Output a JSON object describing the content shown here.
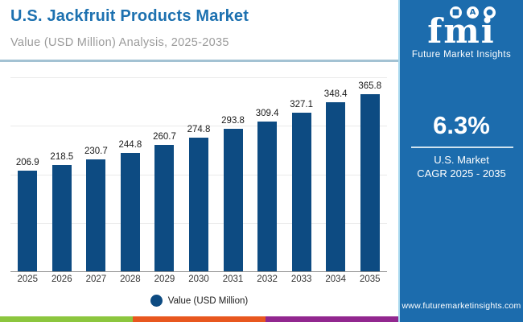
{
  "header": {
    "title": "U.S. Jackfruit Products Market",
    "subtitle": "Value (USD Million) Analysis, 2025-2035"
  },
  "chart_data": {
    "type": "bar",
    "title": "U.S. Jackfruit Products Market",
    "categories": [
      "2025",
      "2026",
      "2027",
      "2028",
      "2029",
      "2030",
      "2031",
      "2032",
      "2033",
      "2034",
      "2035"
    ],
    "values": [
      206.9,
      218.5,
      230.7,
      244.8,
      260.7,
      274.8,
      293.8,
      309.4,
      327.1,
      348.4,
      365.8
    ],
    "xlabel": "",
    "ylabel": "Value (USD Million)",
    "ylim": [
      0,
      400
    ],
    "grid": true,
    "gridline_step": 100,
    "bar_color": "#0d4b82",
    "legend": {
      "label": "Value (USD Million)",
      "marker": "circle",
      "position": "bottom-center"
    }
  },
  "sidebar": {
    "bg_color": "#1c6cad",
    "logo_text": "fmi",
    "logo_subtext": "Future Market Insights",
    "logo_icons": [
      "map-icon",
      "compass-icon",
      "globe-icon"
    ],
    "cagr_value": "6.3%",
    "cagr_label_line1": "U.S. Market",
    "cagr_label_line2": "CAGR 2025 - 2035",
    "website": "www.futuremarketinsights.com"
  },
  "footer": {
    "stripe_colors": [
      "#8cc63e",
      "#e8571f",
      "#92278f"
    ]
  }
}
